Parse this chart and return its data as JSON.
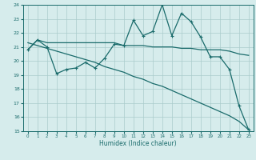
{
  "xlabel": "Humidex (Indice chaleur)",
  "xlim": [
    -0.5,
    23.5
  ],
  "ylim": [
    15,
    24
  ],
  "yticks": [
    15,
    16,
    17,
    18,
    19,
    20,
    21,
    22,
    23,
    24
  ],
  "xticks": [
    0,
    1,
    2,
    3,
    4,
    5,
    6,
    7,
    8,
    9,
    10,
    11,
    12,
    13,
    14,
    15,
    16,
    17,
    18,
    19,
    20,
    21,
    22,
    23
  ],
  "bg_color": "#d6ecec",
  "grid_color": "#aacccc",
  "line_color": "#1a6b6b",
  "line1_x": [
    0,
    1,
    2,
    3,
    4,
    5,
    6,
    7,
    8,
    9,
    10,
    11,
    12,
    13,
    14,
    15,
    16,
    17,
    18,
    19,
    20,
    21,
    22,
    23
  ],
  "line1_y": [
    20.8,
    21.5,
    21.3,
    21.3,
    21.3,
    21.3,
    21.3,
    21.3,
    21.3,
    21.3,
    21.1,
    21.1,
    21.1,
    21.0,
    21.0,
    21.0,
    20.9,
    20.9,
    20.8,
    20.8,
    20.8,
    20.7,
    20.5,
    20.4
  ],
  "line2_x": [
    0,
    1,
    2,
    3,
    4,
    5,
    6,
    7,
    8,
    9,
    10,
    11,
    12,
    13,
    14,
    15,
    16,
    17,
    18,
    19,
    20,
    21,
    22,
    23
  ],
  "line2_y": [
    20.8,
    21.5,
    21.0,
    19.1,
    19.4,
    19.5,
    19.9,
    19.5,
    20.2,
    21.2,
    21.1,
    22.9,
    21.8,
    22.1,
    24.0,
    21.8,
    23.4,
    22.8,
    21.7,
    20.3,
    20.3,
    19.4,
    16.8,
    15.1
  ],
  "line3_x": [
    0,
    1,
    2,
    3,
    4,
    5,
    6,
    7,
    8,
    9,
    10,
    11,
    12,
    13,
    14,
    15,
    16,
    17,
    18,
    19,
    20,
    21,
    22,
    23
  ],
  "line3_y": [
    21.3,
    21.1,
    20.9,
    20.7,
    20.5,
    20.3,
    20.1,
    19.9,
    19.6,
    19.4,
    19.2,
    18.9,
    18.7,
    18.4,
    18.2,
    17.9,
    17.6,
    17.3,
    17.0,
    16.7,
    16.4,
    16.1,
    15.7,
    15.1
  ]
}
